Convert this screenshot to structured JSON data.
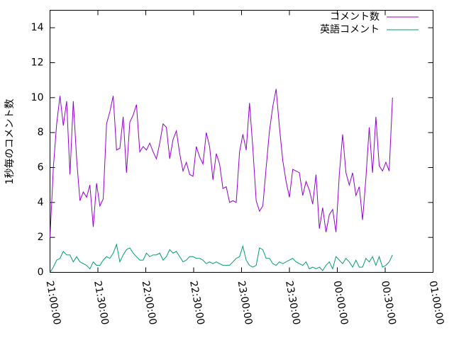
{
  "chart_data": {
    "type": "line",
    "ylabel": "1秒毎のコメント数",
    "x": [
      75600,
      75725,
      75850,
      75975,
      76100,
      76225,
      76350,
      76475,
      76600,
      76725,
      76850,
      76975,
      77100,
      77225,
      77350,
      77475,
      77600,
      77725,
      77850,
      77975,
      78100,
      78225,
      78350,
      78475,
      78600,
      78725,
      78850,
      78975,
      79100,
      79225,
      79350,
      79475,
      79600,
      79725,
      79850,
      79975,
      80100,
      80225,
      80350,
      80475,
      80600,
      80725,
      80850,
      80975,
      81100,
      81225,
      81350,
      81475,
      81600,
      81725,
      81850,
      81975,
      82100,
      82225,
      82350,
      82475,
      82600,
      82725,
      82850,
      82975,
      83100,
      83225,
      83350,
      83475,
      83600,
      83725,
      83850,
      83975,
      84100,
      84225,
      84350,
      84475,
      84600,
      84725,
      84850,
      84975,
      85100,
      85225,
      85350,
      85475,
      85600,
      85725,
      85850,
      85975,
      86100,
      86225,
      86350,
      86475,
      86600,
      86725,
      86850,
      86975,
      87100,
      87225,
      87350,
      87475,
      87600,
      87725,
      87850,
      87975,
      88100,
      88225,
      88350,
      88475
    ],
    "series": [
      {
        "name": "コメント数",
        "color": "#9400d3",
        "values": [
          2,
          6,
          8.5,
          10.1,
          8.4,
          9.8,
          5.6,
          9.8,
          6.5,
          4.1,
          4.6,
          4.3,
          5,
          2.6,
          5.1,
          3.8,
          4.2,
          8.5,
          9.2,
          10.1,
          7,
          7.1,
          8.9,
          5.7,
          8.6,
          9,
          9.6,
          6.9,
          7.2,
          7,
          7.4,
          6.9,
          6.5,
          7.4,
          8.5,
          8.3,
          6.5,
          7.6,
          8.1,
          6.8,
          5.8,
          6.3,
          5.6,
          5.5,
          7.2,
          6.6,
          6.2,
          8,
          7.2,
          5.3,
          6.8,
          6.2,
          4.8,
          4.9,
          4,
          4.1,
          4,
          6.9,
          7.9,
          7,
          9.7,
          7.1,
          4.1,
          3.5,
          3.8,
          6,
          8.1,
          9.5,
          10.5,
          8.3,
          6.4,
          5.2,
          4.3,
          5.9,
          5.8,
          5.7,
          4.4,
          5.2,
          4.7,
          3.9,
          5.6,
          2.5,
          3.7,
          2.3,
          3.3,
          3.6,
          2.3,
          5.6,
          7.9,
          5.7,
          5,
          5.7,
          4.4,
          4.9,
          3,
          5.4,
          8.3,
          5.7,
          8.9,
          6.1,
          5.8,
          6.3,
          5.8,
          10
        ]
      },
      {
        "name": "英語コメント",
        "color": "#009e73",
        "values": [
          0,
          0.3,
          0.7,
          0.8,
          1.2,
          1,
          1,
          0.6,
          0.9,
          0.6,
          0.5,
          0.4,
          0.2,
          0.6,
          0.4,
          0.4,
          0.7,
          0.9,
          0.8,
          1.1,
          1.6,
          0.6,
          1,
          1.3,
          1.4,
          1.1,
          0.9,
          0.7,
          0.7,
          1.1,
          0.9,
          1,
          1,
          1.1,
          0.7,
          0.9,
          1.3,
          1.1,
          1.2,
          0.9,
          0.6,
          0.7,
          0.9,
          0.9,
          0.8,
          0.8,
          0.7,
          0.5,
          0.6,
          0.5,
          0.6,
          0.5,
          0.4,
          0.4,
          0.4,
          0.6,
          0.8,
          0.9,
          1.5,
          0.7,
          0.4,
          0.3,
          0.4,
          1.4,
          1.3,
          0.8,
          0.8,
          0.5,
          0.4,
          0.6,
          0.5,
          0.6,
          0.7,
          0.8,
          0.6,
          0.5,
          0.4,
          0.6,
          0.2,
          0.3,
          0.2,
          0.3,
          0.1,
          0.4,
          0.6,
          0.2,
          0.9,
          0.7,
          0.5,
          0.8,
          0.6,
          0.3,
          0.7,
          0.3,
          0.3,
          0.8,
          0.6,
          0.9,
          0.4,
          0.9,
          0.3,
          0.4,
          0.6,
          1
        ]
      }
    ],
    "xlim": [
      75600,
      90000
    ],
    "xticks": [
      {
        "value": 75600,
        "label": "21:00:00"
      },
      {
        "value": 77400,
        "label": "21:30:00"
      },
      {
        "value": 79200,
        "label": "22:00:00"
      },
      {
        "value": 81000,
        "label": "22:30:00"
      },
      {
        "value": 82800,
        "label": "23:00:00"
      },
      {
        "value": 84600,
        "label": "23:30:00"
      },
      {
        "value": 86400,
        "label": "00:00:00"
      },
      {
        "value": 88200,
        "label": "00:30:00"
      },
      {
        "value": 90000,
        "label": "01:00:00"
      }
    ],
    "ylim": [
      0,
      15
    ],
    "yticks": [
      0,
      2,
      4,
      6,
      8,
      10,
      12,
      14
    ],
    "grid": false,
    "legend": "top-right"
  }
}
